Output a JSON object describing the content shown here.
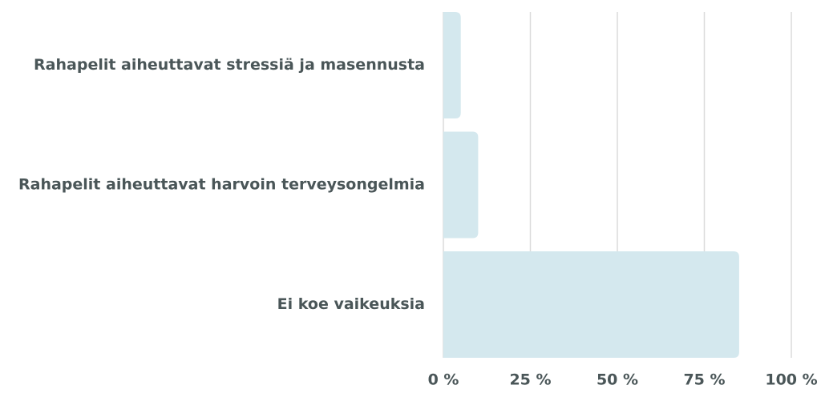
{
  "chart_data": {
    "type": "barh",
    "categories": [
      "Rahapelit aiheuttavat stressiä ja masennusta",
      "Rahapelit aiheuttavat harvoin terveysongelmia",
      "Ei koe vaikeuksia"
    ],
    "values": [
      5,
      10,
      85
    ],
    "color": "#d4e8ee",
    "xlim": [
      0,
      100
    ],
    "xticks": [
      {
        "value": 0,
        "label": "0 %"
      },
      {
        "value": 25,
        "label": "25 %"
      },
      {
        "value": 50,
        "label": "50 %"
      },
      {
        "value": 75,
        "label": "75 %"
      },
      {
        "value": 100,
        "label": "100 %"
      }
    ],
    "grid": true
  }
}
